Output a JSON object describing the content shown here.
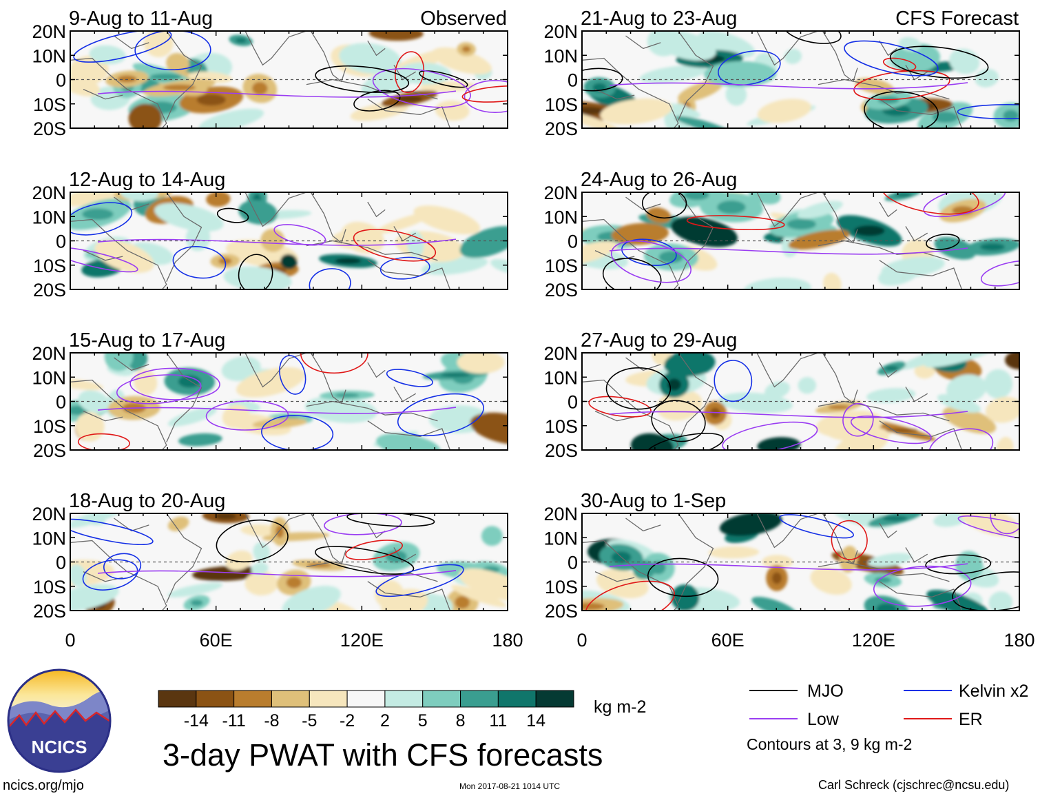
{
  "chart_data": {
    "type": "heatmap",
    "title": "3-day PWAT with CFS forecasts",
    "columns": [
      {
        "title": "Observed",
        "panels": [
          "9-Aug to 11-Aug",
          "12-Aug to 14-Aug",
          "15-Aug to 17-Aug",
          "18-Aug to 20-Aug"
        ]
      },
      {
        "title": "CFS Forecast",
        "panels": [
          "21-Aug to 23-Aug",
          "24-Aug to 26-Aug",
          "27-Aug to 29-Aug",
          "30-Aug to 1-Sep"
        ]
      }
    ],
    "xaxis": {
      "range": [
        0,
        180
      ],
      "ticks": [
        "0",
        "60E",
        "120E",
        "180"
      ]
    },
    "yaxis": {
      "range": [
        -20,
        20
      ],
      "ticks": [
        "20N",
        "10N",
        "0",
        "10S",
        "20S"
      ]
    },
    "colorbar": {
      "ticks": [
        "-14",
        "-11",
        "-8",
        "-5",
        "-2",
        "2",
        "5",
        "8",
        "11",
        "14"
      ],
      "units": "kg m-2",
      "colors": [
        "#5a3610",
        "#8b5314",
        "#b97d2e",
        "#dfc07a",
        "#f6e6bd",
        "#f7f7f7",
        "#c4ebe3",
        "#7ecdbe",
        "#3a9e90",
        "#10766b",
        "#053a33"
      ]
    },
    "contours": {
      "legend": [
        {
          "name": "MJO",
          "color": "#000000"
        },
        {
          "name": "Kelvin x2",
          "color": "#1530e6"
        },
        {
          "name": "Low",
          "color": "#9a3df2"
        },
        {
          "name": "ER",
          "color": "#e01818"
        }
      ],
      "note": "Contours at 3, 9 kg m-2"
    }
  },
  "logo": {
    "text": "NCICS"
  },
  "footer": {
    "url": "ncics.org/mjo",
    "timestamp": "Mon 2017-08-21 1014 UTC",
    "credit": "Carl Schreck (cjschrec@ncsu.edu)"
  }
}
